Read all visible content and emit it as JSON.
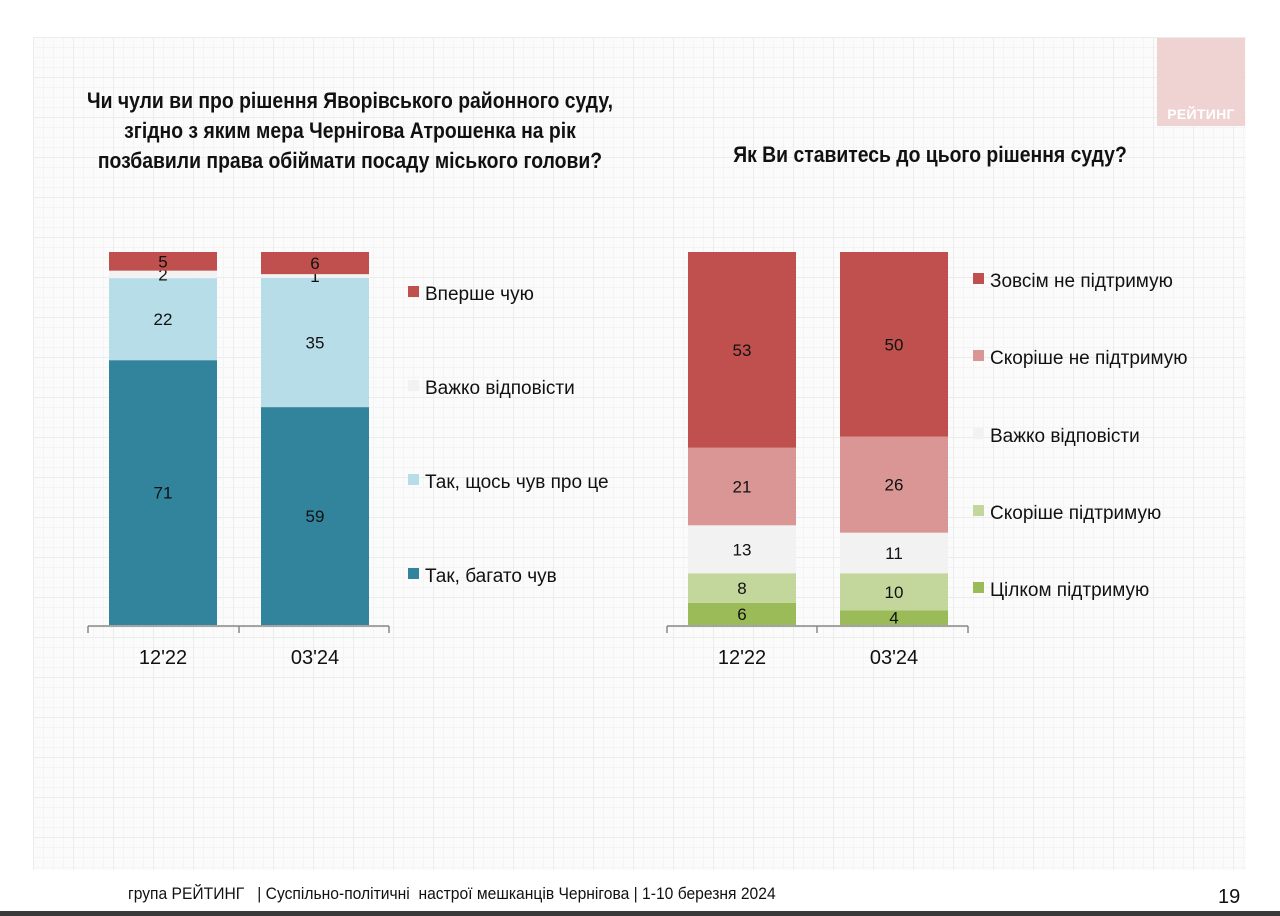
{
  "logo": {
    "text": "РЕЙТИНГ",
    "color": "#efd3d2"
  },
  "footer": {
    "text": "група РЕЙТИНГ   | Суспільно-політичні  настрої мешканців Чернігова | 1-10 березня 2024",
    "page_number": "19"
  },
  "chart_data": [
    {
      "type": "bar",
      "stacked": true,
      "title": "Чи чули ви про рішення Яворівського районного суду, згідно з яким мера Чернігова Атрошенка на рік позбавили права обіймати посаду міського голови?",
      "title_lines": [
        "Чи чули ви про рішення Яворівського районного суду,",
        "згідно з яким мера Чернігова Атрошенка на рік",
        "позбавили права обіймати посаду міського голови?"
      ],
      "categories": [
        "12'22",
        "03'24"
      ],
      "series": [
        {
          "name": "Так, багато чув",
          "color": "#31849b",
          "values": [
            71,
            59
          ]
        },
        {
          "name": "Так, щось чув про це",
          "color": "#b7dde8",
          "values": [
            22,
            35
          ]
        },
        {
          "name": "Важко відповісти",
          "color": "#f2f2f2",
          "values": [
            2,
            1
          ]
        },
        {
          "name": "Вперше чую",
          "color": "#c0504d",
          "values": [
            5,
            6
          ]
        }
      ],
      "legend_order": [
        "Вперше чую",
        "Важко відповісти",
        "Так, щось чув про це",
        "Так, багато чув"
      ],
      "legend": "right",
      "ylim": [
        0,
        100
      ],
      "grid": false
    },
    {
      "type": "bar",
      "stacked": true,
      "title": "Як Ви ставитесь до цього рішення суду?",
      "title_lines": [
        "Як Ви ставитесь до цього рішення суду?"
      ],
      "categories": [
        "12'22",
        "03'24"
      ],
      "series": [
        {
          "name": "Цілком підтримую",
          "color": "#9bbb59",
          "values": [
            6,
            4
          ]
        },
        {
          "name": "Скоріше підтримую",
          "color": "#c3d69b",
          "values": [
            8,
            10
          ]
        },
        {
          "name": "Важко відповісти",
          "color": "#f2f2f2",
          "values": [
            13,
            11
          ]
        },
        {
          "name": "Скоріше не підтримую",
          "color": "#d99694",
          "values": [
            21,
            26
          ]
        },
        {
          "name": "Зовсім не підтримую",
          "color": "#c0504d",
          "values": [
            53,
            50
          ]
        }
      ],
      "legend_order": [
        "Зовсім не підтримую",
        "Скоріше не підтримую",
        "Важко відповісти",
        "Скоріше підтримую",
        "Цілком підтримую"
      ],
      "legend": "right",
      "ylim": [
        0,
        101
      ],
      "grid": false
    }
  ]
}
